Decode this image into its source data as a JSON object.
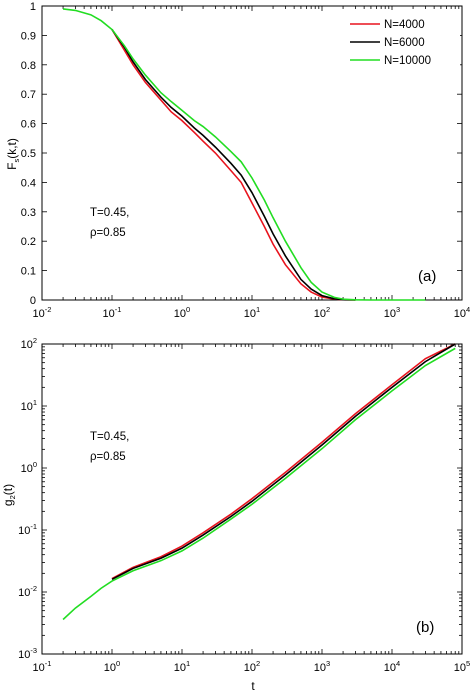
{
  "chart_data": [
    {
      "type": "line",
      "panel_label": "(a)",
      "ylabel_main": "F",
      "ylabel_sub": "s",
      "ylabel_rest": "(k,t)",
      "xlabel": "",
      "xscale": "log",
      "xlim": [
        0.01,
        10000
      ],
      "ylim": [
        0,
        1
      ],
      "x_ticks": [
        {
          "base": "10",
          "exp": "-2"
        },
        {
          "base": "10",
          "exp": "-1"
        },
        {
          "base": "10",
          "exp": "0"
        },
        {
          "base": "10",
          "exp": "1"
        },
        {
          "base": "10",
          "exp": "2"
        },
        {
          "base": "10",
          "exp": "3"
        },
        {
          "base": "10",
          "exp": "4"
        }
      ],
      "y_ticks": [
        "0",
        "0.1",
        "0.2",
        "0.3",
        "0.4",
        "0.5",
        "0.6",
        "0.7",
        "0.8",
        "0.9",
        "1"
      ],
      "annotation": [
        "T=0.45,",
        "ρ=0.85"
      ],
      "legend": {
        "placement": "top-right",
        "entries": [
          "N=4000",
          "N=6000",
          "N=10000"
        ]
      },
      "series": [
        {
          "name": "N=4000",
          "color": "#e8141e",
          "x": [
            0.1,
            0.15,
            0.2,
            0.3,
            0.5,
            0.7,
            1,
            1.5,
            2,
            3,
            5,
            7,
            10,
            15,
            20,
            30,
            50,
            70,
            100,
            150,
            200,
            300
          ],
          "y": [
            0.92,
            0.85,
            0.8,
            0.74,
            0.68,
            0.64,
            0.61,
            0.57,
            0.54,
            0.5,
            0.44,
            0.4,
            0.33,
            0.25,
            0.19,
            0.12,
            0.055,
            0.027,
            0.01,
            0.003,
            0.001,
            0
          ]
        },
        {
          "name": "N=6000",
          "color": "#000000",
          "x": [
            0.1,
            0.15,
            0.2,
            0.3,
            0.5,
            0.7,
            1,
            1.5,
            2,
            3,
            5,
            7,
            10,
            15,
            20,
            30,
            50,
            70,
            100,
            150,
            200,
            300
          ],
          "y": [
            0.92,
            0.86,
            0.81,
            0.75,
            0.69,
            0.655,
            0.625,
            0.585,
            0.56,
            0.52,
            0.465,
            0.425,
            0.365,
            0.285,
            0.225,
            0.15,
            0.07,
            0.037,
            0.015,
            0.004,
            0.001,
            0
          ]
        },
        {
          "name": "N=10000",
          "color": "#22dd22",
          "x": [
            0.02,
            0.03,
            0.05,
            0.07,
            0.1,
            0.15,
            0.2,
            0.3,
            0.5,
            0.7,
            1,
            1.5,
            2,
            3,
            5,
            7,
            10,
            15,
            20,
            30,
            50,
            70,
            100,
            150,
            200,
            300,
            500,
            1000,
            3000
          ],
          "y": [
            0.99,
            0.985,
            0.97,
            0.95,
            0.92,
            0.865,
            0.82,
            0.765,
            0.705,
            0.675,
            0.645,
            0.61,
            0.59,
            0.555,
            0.505,
            0.47,
            0.415,
            0.34,
            0.28,
            0.2,
            0.11,
            0.06,
            0.027,
            0.009,
            0.003,
            0.0005,
            0,
            0,
            0
          ]
        }
      ]
    },
    {
      "type": "line",
      "panel_label": "(b)",
      "ylabel_main": "g",
      "ylabel_sub": "2",
      "ylabel_rest": "(t)",
      "xlabel": "t",
      "xscale": "log",
      "yscale": "log",
      "xlim": [
        0.1,
        100000
      ],
      "ylim": [
        0.001,
        100
      ],
      "x_ticks": [
        {
          "base": "10",
          "exp": "-1"
        },
        {
          "base": "10",
          "exp": "0"
        },
        {
          "base": "10",
          "exp": "1"
        },
        {
          "base": "10",
          "exp": "2"
        },
        {
          "base": "10",
          "exp": "3"
        },
        {
          "base": "10",
          "exp": "4"
        },
        {
          "base": "10",
          "exp": "5"
        }
      ],
      "y_ticks": [
        {
          "base": "10",
          "exp": "-3"
        },
        {
          "base": "10",
          "exp": "-2"
        },
        {
          "base": "10",
          "exp": "-1"
        },
        {
          "base": "10",
          "exp": "0"
        },
        {
          "base": "10",
          "exp": "1"
        },
        {
          "base": "10",
          "exp": "2"
        }
      ],
      "annotation": [
        "T=0.45,",
        "ρ=0.85"
      ],
      "series": [
        {
          "name": "N=4000",
          "color": "#e8141e",
          "x": [
            1,
            2,
            5,
            10,
            20,
            50,
            100,
            300,
            1000,
            3000,
            10000,
            30000,
            80000
          ],
          "y": [
            0.0165,
            0.025,
            0.037,
            0.055,
            0.09,
            0.18,
            0.32,
            0.85,
            2.6,
            7.5,
            22,
            58,
            110
          ]
        },
        {
          "name": "N=6000",
          "color": "#000000",
          "x": [
            1,
            2,
            5,
            10,
            20,
            50,
            100,
            300,
            1000,
            3000,
            10000,
            30000,
            80000
          ],
          "y": [
            0.016,
            0.024,
            0.035,
            0.051,
            0.083,
            0.165,
            0.29,
            0.77,
            2.35,
            6.8,
            20,
            52,
            100
          ]
        },
        {
          "name": "N=10000",
          "color": "#22dd22",
          "x": [
            0.2,
            0.3,
            0.5,
            0.7,
            1,
            2,
            5,
            10,
            20,
            50,
            100,
            300,
            1000,
            3000,
            10000,
            30000,
            80000
          ],
          "y": [
            0.0036,
            0.0055,
            0.0085,
            0.0115,
            0.015,
            0.022,
            0.032,
            0.046,
            0.074,
            0.15,
            0.26,
            0.68,
            2.05,
            6,
            17.5,
            45,
            85
          ]
        }
      ]
    }
  ]
}
